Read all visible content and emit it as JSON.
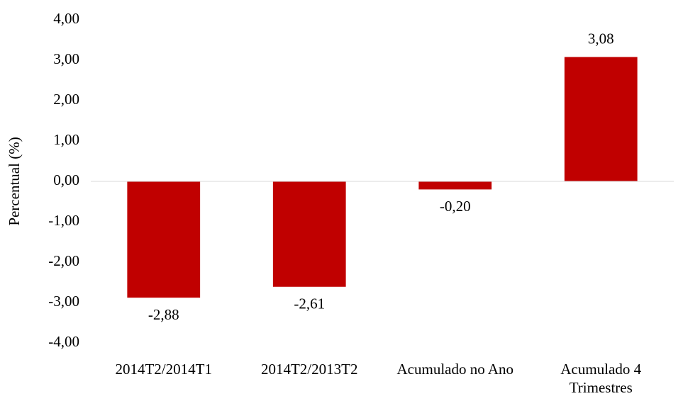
{
  "chart_data": {
    "type": "bar",
    "y_label": "Percentual (%)",
    "categories": [
      "2014T2/2014T1",
      "2014T2/2013T2",
      "Acumulado no Ano",
      "Acumulado 4 Trimestres"
    ],
    "values": [
      -2.88,
      -2.61,
      -0.2,
      3.08
    ],
    "value_labels": [
      "-2,88",
      "-2,61",
      "-0,20",
      "3,08"
    ],
    "color": "#c00000",
    "ylim": [
      -4,
      4
    ],
    "yticks": [
      {
        "value": -4,
        "label": "-4,00"
      },
      {
        "value": -3,
        "label": "-3,00"
      },
      {
        "value": -2,
        "label": "-2,00"
      },
      {
        "value": -1,
        "label": "-1,00"
      },
      {
        "value": 0,
        "label": "0,00"
      },
      {
        "value": 1,
        "label": "1,00"
      },
      {
        "value": 2,
        "label": "2,00"
      },
      {
        "value": 3,
        "label": "3,00"
      },
      {
        "value": 4,
        "label": "4,00"
      }
    ],
    "grid": false
  }
}
